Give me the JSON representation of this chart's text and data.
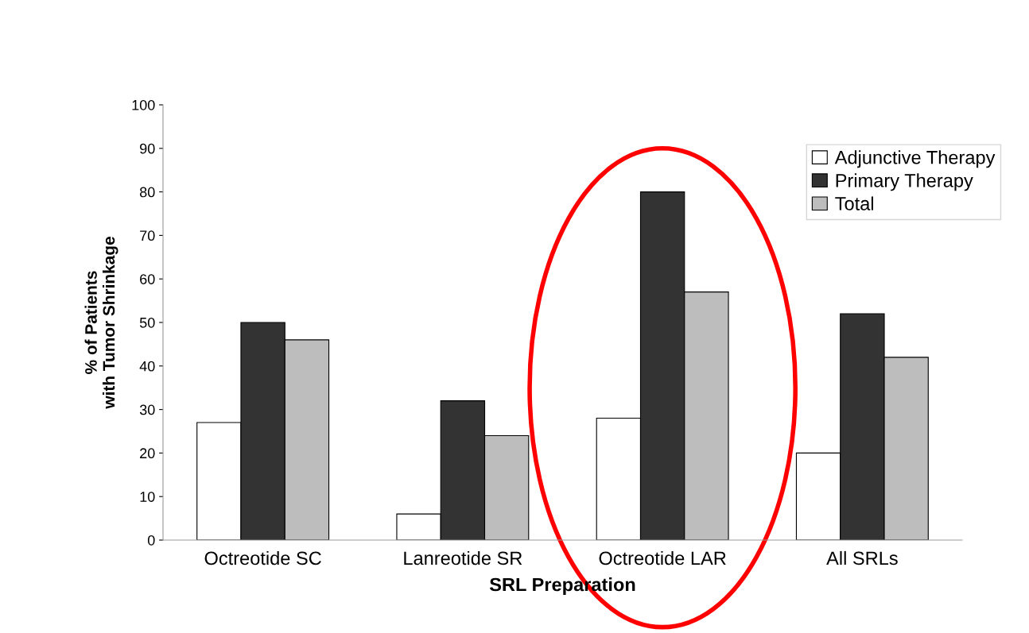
{
  "chart_data": {
    "type": "bar",
    "xlabel": "SRL Preparation",
    "ylabel": "% of Patients\nwith Tumor Shrinkage",
    "categories": [
      "Octreotide SC",
      "Lanreotide SR",
      "Octreotide LAR",
      "All SRLs"
    ],
    "series": [
      {
        "name": "Adjunctive Therapy",
        "color": "#ffffff",
        "values": [
          27,
          6,
          28,
          20
        ]
      },
      {
        "name": "Primary Therapy",
        "color": "#333333",
        "values": [
          50,
          32,
          80,
          52
        ]
      },
      {
        "name": "Total",
        "color": "#bdbdbd",
        "values": [
          46,
          24,
          57,
          42
        ]
      }
    ],
    "ylim": [
      0,
      100
    ],
    "yticks": [
      0,
      10,
      20,
      30,
      40,
      50,
      60,
      70,
      80,
      90,
      100
    ],
    "grid": false,
    "legend": "top right"
  }
}
